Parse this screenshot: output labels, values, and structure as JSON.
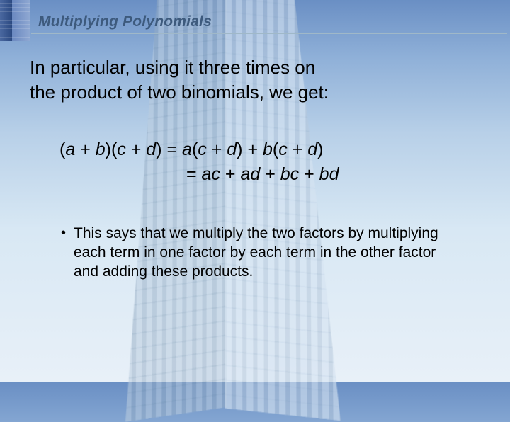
{
  "title": "Multiplying Polynomials",
  "intro_line1": "In particular, using it three times on",
  "intro_line2": "the product of two binomials, we get:",
  "equation": {
    "lhs_open": "(",
    "a": "a",
    "plus1": " + ",
    "b": "b",
    "mid": ")(",
    "c": "c",
    "plus2": " + ",
    "d": "d",
    "rhs_close": ") = ",
    "a2": "a",
    "p_open1": "(",
    "c2": "c",
    "plus3": " + ",
    "d2": "d",
    "p_close1": ") + ",
    "b2": "b",
    "p_open2": "(",
    "c3": "c",
    "plus4": " + ",
    "d3": "d",
    "p_close2": ")",
    "eq2_prefix": "= ",
    "ac_a": "a",
    "ac_c": "c",
    "plus5": " + ",
    "ad_a": "a",
    "ad_d": "d",
    "plus6": " + ",
    "bc_b": "b",
    "bc_c": "c",
    "plus7": " + ",
    "bd_b": "b",
    "bd_d": "d"
  },
  "bullet_text": "This says that we multiply the two factors by multiplying each term in one factor by each term in the other factor and adding these products.",
  "bullet_marker": "•",
  "colors": {
    "title_text": "#3d5a7d",
    "underline": "#a0b8c8",
    "body_text": "#000000"
  }
}
